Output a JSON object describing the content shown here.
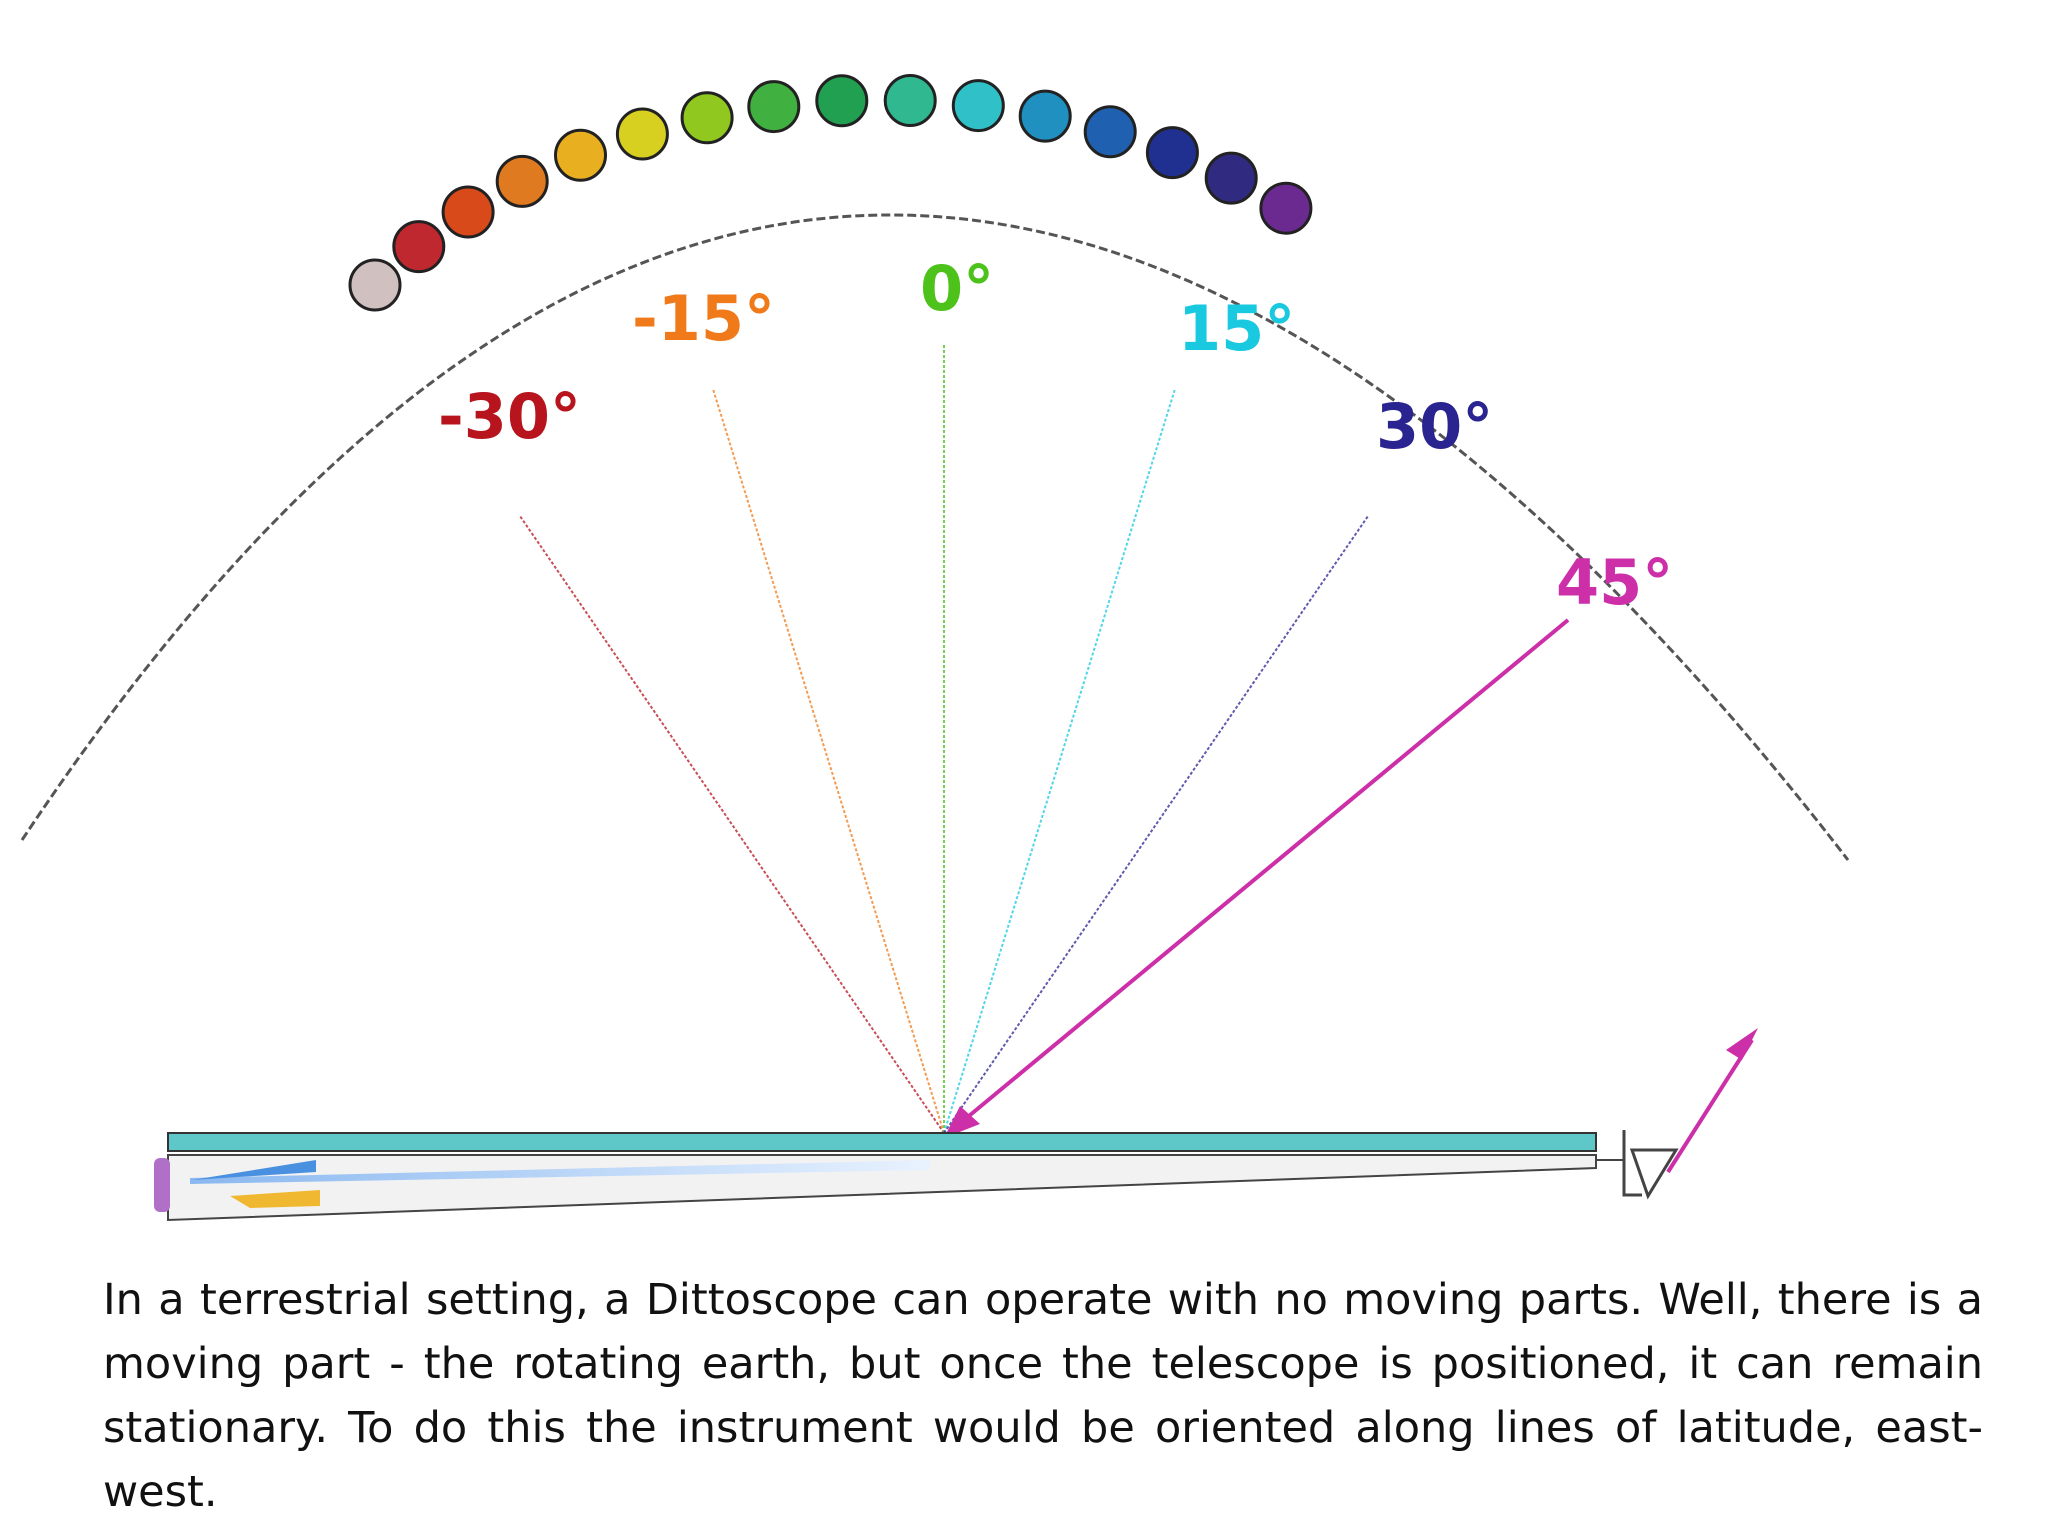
{
  "diagram": {
    "angles": [
      {
        "label": "-30°",
        "angle_deg": -30,
        "color": "#b8141e"
      },
      {
        "label": "-15°",
        "angle_deg": -15,
        "color": "#f07a1a"
      },
      {
        "label": "0°",
        "angle_deg": 0,
        "color": "#4cc21a"
      },
      {
        "label": "15°",
        "angle_deg": 15,
        "color": "#18c9e0"
      },
      {
        "label": "30°",
        "angle_deg": 30,
        "color": "#2a2490"
      },
      {
        "label": "45°",
        "angle_deg": 45,
        "color": "#cc2fa8"
      }
    ],
    "spectrum_colors": [
      "#d0c0c0",
      "#c02830",
      "#d84a1a",
      "#e07a20",
      "#e8b020",
      "#d8d020",
      "#90c820",
      "#40b040",
      "#20a050",
      "#30b890",
      "#30c0c8",
      "#2090c0",
      "#2060b0",
      "#203090",
      "#302a80",
      "#6a2a90"
    ],
    "arrow_color": "#cc2fa8",
    "telescope_color": "#5ec8c8"
  },
  "caption": "In a terrestrial setting, a Dittoscope can operate with no moving parts. Well, there is a moving part - the rotating earth, but once the telescope is positioned, it can remain stationary. To do this the instrument would be oriented along lines of latitude, east-west."
}
